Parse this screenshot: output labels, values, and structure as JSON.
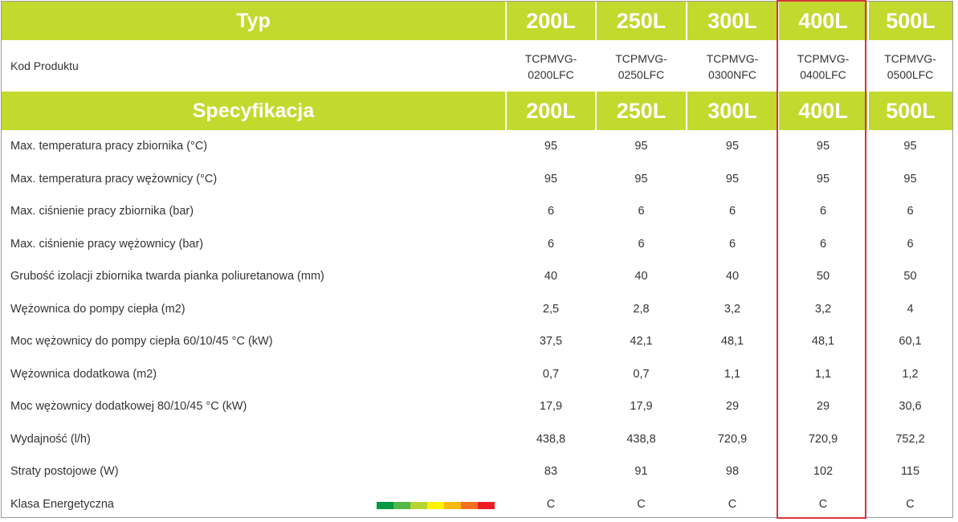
{
  "header": {
    "typ_label": "Typ",
    "spec_label": "Specyfikacja",
    "columns": [
      "200L",
      "250L",
      "300L",
      "400L",
      "500L"
    ]
  },
  "kod": {
    "label": "Kod Produktu",
    "values": [
      [
        "TCPMVG-",
        "0200LFC"
      ],
      [
        "TCPMVG-",
        "0250LFC"
      ],
      [
        "TCPMVG-",
        "0300NFC"
      ],
      [
        "TCPMVG-",
        "0400LFC"
      ],
      [
        "TCPMVG-",
        "0500LFC"
      ]
    ]
  },
  "rows": [
    {
      "label": "Max. temperatura pracy zbiornika (°C)",
      "values": [
        "95",
        "95",
        "95",
        "95",
        "95"
      ]
    },
    {
      "label": "Max. temperatura pracy wężownicy (°C)",
      "values": [
        "95",
        "95",
        "95",
        "95",
        "95"
      ]
    },
    {
      "label": "Max. ciśnienie pracy zbiornika (bar)",
      "values": [
        "6",
        "6",
        "6",
        "6",
        "6"
      ]
    },
    {
      "label": "Max. ciśnienie pracy wężownicy (bar)",
      "values": [
        "6",
        "6",
        "6",
        "6",
        "6"
      ]
    },
    {
      "label": "Grubość izolacji zbiornika twarda pianka poliuretanowa  (mm)",
      "values": [
        "40",
        "40",
        "40",
        "50",
        "50"
      ]
    },
    {
      "label": "Wężownica do pompy ciepła (m2)",
      "values": [
        "2,5",
        "2,8",
        "3,2",
        "3,2",
        "4"
      ]
    },
    {
      "label": "Moc wężownicy do pompy ciepła  60/10/45 °C (kW)",
      "values": [
        "37,5",
        "42,1",
        "48,1",
        "48,1",
        "60,1"
      ]
    },
    {
      "label": "Wężownica dodatkowa (m2)",
      "values": [
        "0,7",
        "0,7",
        "1,1",
        "1,1",
        "1,2"
      ]
    },
    {
      "label": "Moc wężownicy dodatkowej 80/10/45 °C (kW)",
      "values": [
        "17,9",
        "17,9",
        "29",
        "29",
        "30,6"
      ]
    },
    {
      "label": "Wydajność (l/h)",
      "values": [
        "438,8",
        "438,8",
        "720,9",
        "720,9",
        "752,2"
      ]
    },
    {
      "label": "Straty postojowe (W)",
      "values": [
        "83",
        "91",
        "98",
        "102",
        "115"
      ]
    },
    {
      "label": "Klasa Energetyczna",
      "values": [
        "C",
        "C",
        "C",
        "C",
        "C"
      ]
    }
  ],
  "colors": {
    "header_green": "#c2d92e",
    "highlight_red": "#d9343a",
    "energy_scale": [
      "#009a44",
      "#52b848",
      "#b7d433",
      "#fff200",
      "#fdb913",
      "#f37021",
      "#ed1c24"
    ]
  },
  "highlighted_column": "400L"
}
